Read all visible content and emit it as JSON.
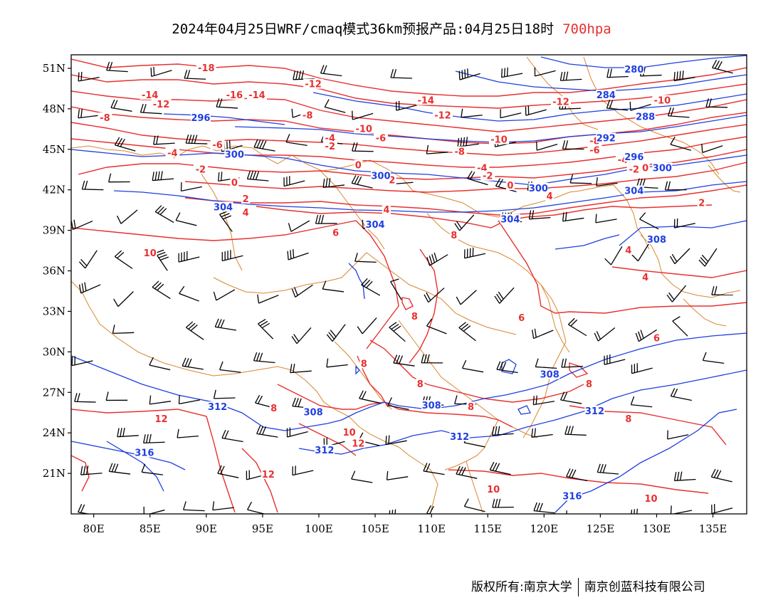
{
  "header": {
    "title": "2024年04月25日WRF/cmaq模式36km预报产品:04月25日18时",
    "level": "700hpa"
  },
  "footer": {
    "copyright": "版权所有:南京大学",
    "company": "南京创蓝科技有限公司"
  },
  "axes": {
    "lat_labels": [
      "51N",
      "48N",
      "45N",
      "42N",
      "39N",
      "36N",
      "33N",
      "30N",
      "27N",
      "24N",
      "21N"
    ],
    "lat_values": [
      51,
      48,
      45,
      42,
      39,
      36,
      33,
      30,
      27,
      24,
      21
    ],
    "lon_labels": [
      "80E",
      "85E",
      "90E",
      "95E",
      "100E",
      "105E",
      "110E",
      "115E",
      "120E",
      "125E",
      "130E",
      "135E"
    ],
    "lon_values": [
      80,
      85,
      90,
      95,
      100,
      105,
      110,
      115,
      120,
      125,
      130,
      135
    ],
    "lon_range": [
      78,
      138
    ],
    "lat_range": [
      18,
      52
    ]
  },
  "colors": {
    "temperature": "#e8302f",
    "height": "#1f3fe0",
    "border": "#d9862e",
    "barb": "#000000"
  },
  "temperature_labels": [
    {
      "text": "-18",
      "lon": 90,
      "lat": 51
    },
    {
      "text": "-16",
      "lon": 92.5,
      "lat": 49
    },
    {
      "text": "-14",
      "lon": 94.5,
      "lat": 49
    },
    {
      "text": "-14",
      "lon": 85,
      "lat": 49
    },
    {
      "text": "-12",
      "lon": 86,
      "lat": 48.3
    },
    {
      "text": "-12",
      "lon": 99.5,
      "lat": 49.8
    },
    {
      "text": "-14",
      "lon": 109.5,
      "lat": 48.6
    },
    {
      "text": "-12",
      "lon": 111,
      "lat": 47.5
    },
    {
      "text": "-12",
      "lon": 121.5,
      "lat": 48.5
    },
    {
      "text": "-10",
      "lon": 130.5,
      "lat": 48.6
    },
    {
      "text": "-10",
      "lon": 104,
      "lat": 46.5
    },
    {
      "text": "-10",
      "lon": 116,
      "lat": 45.7
    },
    {
      "text": "-8",
      "lon": 81,
      "lat": 47.3
    },
    {
      "text": "-8",
      "lon": 99,
      "lat": 47.5
    },
    {
      "text": "-8",
      "lon": 112.5,
      "lat": 44.8
    },
    {
      "text": "-8",
      "lon": 124.5,
      "lat": 45.6
    },
    {
      "text": "-6",
      "lon": 91,
      "lat": 45.3
    },
    {
      "text": "-6",
      "lon": 105.5,
      "lat": 45.8
    },
    {
      "text": "-6",
      "lon": 124.5,
      "lat": 44.9
    },
    {
      "text": "-4",
      "lon": 87,
      "lat": 44.7
    },
    {
      "text": "-4",
      "lon": 101,
      "lat": 45.8
    },
    {
      "text": "-4",
      "lon": 114.5,
      "lat": 43.6
    },
    {
      "text": "-4",
      "lon": 127,
      "lat": 44.2
    },
    {
      "text": "-2",
      "lon": 89.5,
      "lat": 43.5
    },
    {
      "text": "-2",
      "lon": 101,
      "lat": 45.2
    },
    {
      "text": "-2",
      "lon": 115,
      "lat": 43
    },
    {
      "text": "-2",
      "lon": 128,
      "lat": 43.5
    },
    {
      "text": "0",
      "lon": 92.5,
      "lat": 42.5
    },
    {
      "text": "0",
      "lon": 103.5,
      "lat": 43.8
    },
    {
      "text": "0",
      "lon": 117,
      "lat": 42.3
    },
    {
      "text": "0",
      "lon": 129,
      "lat": 43.6
    },
    {
      "text": "2",
      "lon": 93.5,
      "lat": 41.3
    },
    {
      "text": "2",
      "lon": 106.5,
      "lat": 42.7
    },
    {
      "text": "2",
      "lon": 134,
      "lat": 41
    },
    {
      "text": "4",
      "lon": 93.5,
      "lat": 40.3
    },
    {
      "text": "4",
      "lon": 106,
      "lat": 40.5
    },
    {
      "text": "4",
      "lon": 120.5,
      "lat": 41.5
    },
    {
      "text": "4",
      "lon": 127.5,
      "lat": 37.5
    },
    {
      "text": "4",
      "lon": 129,
      "lat": 35.5
    },
    {
      "text": "6",
      "lon": 101.5,
      "lat": 38.8
    },
    {
      "text": "6",
      "lon": 118,
      "lat": 32.5
    },
    {
      "text": "6",
      "lon": 130,
      "lat": 31
    },
    {
      "text": "8",
      "lon": 112,
      "lat": 38.6
    },
    {
      "text": "8",
      "lon": 108.5,
      "lat": 32.6
    },
    {
      "text": "8",
      "lon": 104,
      "lat": 29.1
    },
    {
      "text": "8",
      "lon": 109,
      "lat": 27.6
    },
    {
      "text": "8",
      "lon": 96,
      "lat": 25.8
    },
    {
      "text": "8",
      "lon": 113.5,
      "lat": 25.9
    },
    {
      "text": "8",
      "lon": 124,
      "lat": 27.6
    },
    {
      "text": "8",
      "lon": 127.5,
      "lat": 25
    },
    {
      "text": "10",
      "lon": 85,
      "lat": 37.3
    },
    {
      "text": "10",
      "lon": 102.7,
      "lat": 24
    },
    {
      "text": "10",
      "lon": 115.5,
      "lat": 19.8
    },
    {
      "text": "10",
      "lon": 129.5,
      "lat": 19.1
    },
    {
      "text": "12",
      "lon": 86,
      "lat": 25
    },
    {
      "text": "12",
      "lon": 103.5,
      "lat": 23.2
    },
    {
      "text": "12",
      "lon": 95.5,
      "lat": 20.9
    }
  ],
  "height_labels": [
    {
      "text": "280",
      "lon": 128,
      "lat": 50.9
    },
    {
      "text": "284",
      "lon": 125.5,
      "lat": 49
    },
    {
      "text": "288",
      "lon": 129,
      "lat": 47.4
    },
    {
      "text": "292",
      "lon": 125.5,
      "lat": 45.8
    },
    {
      "text": "296",
      "lon": 89.5,
      "lat": 47.3
    },
    {
      "text": "296",
      "lon": 128,
      "lat": 44.4
    },
    {
      "text": "300",
      "lon": 92.5,
      "lat": 44.6
    },
    {
      "text": "300",
      "lon": 105.5,
      "lat": 43
    },
    {
      "text": "300",
      "lon": 119.5,
      "lat": 42.1
    },
    {
      "text": "300",
      "lon": 130.5,
      "lat": 43.6
    },
    {
      "text": "304",
      "lon": 91.5,
      "lat": 40.7
    },
    {
      "text": "304",
      "lon": 105,
      "lat": 39.4
    },
    {
      "text": "304",
      "lon": 117,
      "lat": 39.8
    },
    {
      "text": "304",
      "lon": 128,
      "lat": 41.9
    },
    {
      "text": "308",
      "lon": 130,
      "lat": 38.3
    },
    {
      "text": "308",
      "lon": 99.5,
      "lat": 25.5
    },
    {
      "text": "308",
      "lon": 110,
      "lat": 26
    },
    {
      "text": "308",
      "lon": 120.5,
      "lat": 28.3
    },
    {
      "text": "312",
      "lon": 91,
      "lat": 25.9
    },
    {
      "text": "312",
      "lon": 100.5,
      "lat": 22.7
    },
    {
      "text": "312",
      "lon": 112.5,
      "lat": 23.7
    },
    {
      "text": "312",
      "lon": 124.5,
      "lat": 25.6
    },
    {
      "text": "316",
      "lon": 84.5,
      "lat": 22.5
    },
    {
      "text": "316",
      "lon": 122.5,
      "lat": 19.3
    }
  ]
}
